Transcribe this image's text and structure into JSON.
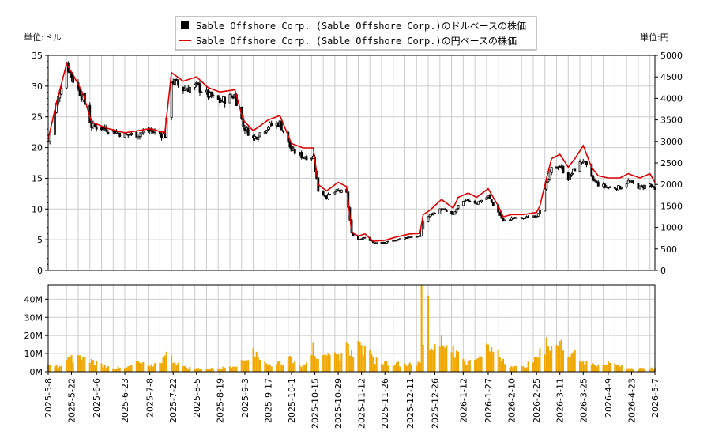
{
  "chart_data": [
    {
      "type": "candlestick-line",
      "legend": [
        {
          "label": "Sable Offshore Corp. (Sable Offshore Corp.)のドルベースの株価",
          "color": "#000000",
          "marker": "square"
        },
        {
          "label": "Sable Offshore Corp. (Sable Offshore Corp.)の円ベースの株価",
          "color": "#dd0000",
          "marker": "line"
        }
      ],
      "left_axis_label": "単位:ドル",
      "right_axis_label": "単位:円",
      "ylim_left": [
        0,
        35
      ],
      "ylim_right": [
        0,
        5000
      ],
      "yticks_left": [
        0,
        5,
        10,
        15,
        20,
        25,
        30,
        35
      ],
      "yticks_right": [
        0,
        500,
        1000,
        1500,
        2000,
        2500,
        3000,
        3500,
        4000,
        4500,
        5000
      ],
      "grid": true,
      "usd_close_key_points": [
        {
          "date": "2025-05-08",
          "close": 21
        },
        {
          "date": "2025-05-13",
          "close": 27
        },
        {
          "date": "2025-05-19",
          "close": 33.5
        },
        {
          "date": "2025-05-23",
          "close": 31
        },
        {
          "date": "2025-05-29",
          "close": 28
        },
        {
          "date": "2025-06-03",
          "close": 23.5
        },
        {
          "date": "2025-06-13",
          "close": 23
        },
        {
          "date": "2025-06-23",
          "close": 22
        },
        {
          "date": "2025-07-01",
          "close": 22.2
        },
        {
          "date": "2025-07-08",
          "close": 22.8
        },
        {
          "date": "2025-07-17",
          "close": 22
        },
        {
          "date": "2025-07-21",
          "close": 31
        },
        {
          "date": "2025-07-28",
          "close": 29.5
        },
        {
          "date": "2025-08-05",
          "close": 30
        },
        {
          "date": "2025-08-12",
          "close": 28.5
        },
        {
          "date": "2025-08-19",
          "close": 27.5
        },
        {
          "date": "2025-08-28",
          "close": 28.5
        },
        {
          "date": "2025-09-02",
          "close": 23.5
        },
        {
          "date": "2025-09-08",
          "close": 21.5
        },
        {
          "date": "2025-09-17",
          "close": 23.5
        },
        {
          "date": "2025-09-24",
          "close": 24
        },
        {
          "date": "2025-10-01",
          "close": 19.5
        },
        {
          "date": "2025-10-08",
          "close": 18.5
        },
        {
          "date": "2025-10-14",
          "close": 18.5
        },
        {
          "date": "2025-10-17",
          "close": 13
        },
        {
          "date": "2025-10-22",
          "close": 12
        },
        {
          "date": "2025-10-29",
          "close": 13
        },
        {
          "date": "2025-11-03",
          "close": 12.5
        },
        {
          "date": "2025-11-06",
          "close": 6
        },
        {
          "date": "2025-11-10",
          "close": 5
        },
        {
          "date": "2025-11-14",
          "close": 5.5
        },
        {
          "date": "2025-11-19",
          "close": 4.5
        },
        {
          "date": "2025-11-26",
          "close": 4.5
        },
        {
          "date": "2025-12-03",
          "close": 5
        },
        {
          "date": "2025-12-11",
          "close": 5.5
        },
        {
          "date": "2025-12-17",
          "close": 5.5
        },
        {
          "date": "2025-12-19",
          "close": 8
        },
        {
          "date": "2025-12-23",
          "close": 9
        },
        {
          "date": "2025-12-30",
          "close": 10
        },
        {
          "date": "2026-01-06",
          "close": 9
        },
        {
          "date": "2026-01-09",
          "close": 10.5
        },
        {
          "date": "2026-01-15",
          "close": 11.5
        },
        {
          "date": "2026-01-20",
          "close": 11
        },
        {
          "date": "2026-01-27",
          "close": 12
        },
        {
          "date": "2026-02-02",
          "close": 9.5
        },
        {
          "date": "2026-02-05",
          "close": 8
        },
        {
          "date": "2026-02-10",
          "close": 8.5
        },
        {
          "date": "2026-02-17",
          "close": 8.5
        },
        {
          "date": "2026-02-25",
          "close": 9
        },
        {
          "date": "2026-02-27",
          "close": 10
        },
        {
          "date": "2026-03-03",
          "close": 14
        },
        {
          "date": "2026-03-06",
          "close": 16.5
        },
        {
          "date": "2026-03-11",
          "close": 17
        },
        {
          "date": "2026-03-16",
          "close": 15
        },
        {
          "date": "2026-03-20",
          "close": 16.5
        },
        {
          "date": "2026-03-25",
          "close": 18
        },
        {
          "date": "2026-03-30",
          "close": 15
        },
        {
          "date": "2026-04-03",
          "close": 14
        },
        {
          "date": "2026-04-09",
          "close": 13.5
        },
        {
          "date": "2026-04-16",
          "close": 13.5
        },
        {
          "date": "2026-04-21",
          "close": 14.5
        },
        {
          "date": "2026-04-28",
          "close": 13.5
        },
        {
          "date": "2026-05-04",
          "close": 14
        },
        {
          "date": "2026-05-07",
          "close": 13
        }
      ],
      "jpy_close_key_points": [
        {
          "date": "2025-05-08",
          "close": 3050
        },
        {
          "date": "2025-05-13",
          "close": 3900
        },
        {
          "date": "2025-05-19",
          "close": 4800
        },
        {
          "date": "2025-05-23",
          "close": 4550
        },
        {
          "date": "2025-05-29",
          "close": 4100
        },
        {
          "date": "2025-06-03",
          "close": 3450
        },
        {
          "date": "2025-06-13",
          "close": 3300
        },
        {
          "date": "2025-06-23",
          "close": 3200
        },
        {
          "date": "2025-07-01",
          "close": 3250
        },
        {
          "date": "2025-07-08",
          "close": 3300
        },
        {
          "date": "2025-07-17",
          "close": 3200
        },
        {
          "date": "2025-07-21",
          "close": 4600
        },
        {
          "date": "2025-07-28",
          "close": 4400
        },
        {
          "date": "2025-08-05",
          "close": 4500
        },
        {
          "date": "2025-08-12",
          "close": 4250
        },
        {
          "date": "2025-08-19",
          "close": 4150
        },
        {
          "date": "2025-08-28",
          "close": 4200
        },
        {
          "date": "2025-09-02",
          "close": 3500
        },
        {
          "date": "2025-09-08",
          "close": 3250
        },
        {
          "date": "2025-09-17",
          "close": 3500
        },
        {
          "date": "2025-09-24",
          "close": 3600
        },
        {
          "date": "2025-10-01",
          "close": 2950
        },
        {
          "date": "2025-10-08",
          "close": 2850
        },
        {
          "date": "2025-10-14",
          "close": 2850
        },
        {
          "date": "2025-10-17",
          "close": 2000
        },
        {
          "date": "2025-10-22",
          "close": 1850
        },
        {
          "date": "2025-10-29",
          "close": 2050
        },
        {
          "date": "2025-11-03",
          "close": 1950
        },
        {
          "date": "2025-11-06",
          "close": 900
        },
        {
          "date": "2025-11-10",
          "close": 800
        },
        {
          "date": "2025-11-14",
          "close": 850
        },
        {
          "date": "2025-11-19",
          "close": 680
        },
        {
          "date": "2025-11-26",
          "close": 700
        },
        {
          "date": "2025-12-03",
          "close": 780
        },
        {
          "date": "2025-12-11",
          "close": 850
        },
        {
          "date": "2025-12-17",
          "close": 860
        },
        {
          "date": "2025-12-19",
          "close": 1300
        },
        {
          "date": "2025-12-23",
          "close": 1400
        },
        {
          "date": "2025-12-30",
          "close": 1650
        },
        {
          "date": "2026-01-06",
          "close": 1450
        },
        {
          "date": "2026-01-09",
          "close": 1700
        },
        {
          "date": "2026-01-15",
          "close": 1800
        },
        {
          "date": "2026-01-20",
          "close": 1700
        },
        {
          "date": "2026-01-27",
          "close": 1900
        },
        {
          "date": "2026-02-02",
          "close": 1500
        },
        {
          "date": "2026-02-05",
          "close": 1250
        },
        {
          "date": "2026-02-10",
          "close": 1300
        },
        {
          "date": "2026-02-17",
          "close": 1300
        },
        {
          "date": "2026-02-25",
          "close": 1350
        },
        {
          "date": "2026-02-27",
          "close": 1500
        },
        {
          "date": "2026-03-03",
          "close": 2150
        },
        {
          "date": "2026-03-06",
          "close": 2600
        },
        {
          "date": "2026-03-11",
          "close": 2700
        },
        {
          "date": "2026-03-16",
          "close": 2400
        },
        {
          "date": "2026-03-20",
          "close": 2600
        },
        {
          "date": "2026-03-25",
          "close": 2900
        },
        {
          "date": "2026-03-30",
          "close": 2400
        },
        {
          "date": "2026-04-03",
          "close": 2200
        },
        {
          "date": "2026-04-09",
          "close": 2150
        },
        {
          "date": "2026-04-16",
          "close": 2150
        },
        {
          "date": "2026-04-21",
          "close": 2250
        },
        {
          "date": "2026-04-28",
          "close": 2150
        },
        {
          "date": "2026-05-04",
          "close": 2250
        },
        {
          "date": "2026-05-07",
          "close": 2050
        }
      ]
    },
    {
      "type": "bar",
      "ylim": [
        0,
        48
      ],
      "yticks": [
        0,
        10,
        20,
        30,
        40
      ],
      "ytick_labels": [
        "0M",
        "10M",
        "20M",
        "30M",
        "40M"
      ],
      "bar_color": "#f0a800",
      "xlim": [
        "2025-05-08",
        "2026-05-07"
      ],
      "xtick_labels": [
        "2025-5-8",
        "2025-5-22",
        "2025-6-6",
        "2025-6-23",
        "2025-7-8",
        "2025-7-22",
        "2025-8-5",
        "2025-8-19",
        "2025-9-3",
        "2025-9-17",
        "2025-10-1",
        "2025-10-15",
        "2025-10-29",
        "2025-11-12",
        "2025-11-26",
        "2025-12-11",
        "2025-12-26",
        "2026-1-12",
        "2026-1-27",
        "2026-2-10",
        "2026-2-25",
        "2026-3-11",
        "2026-3-25",
        "2026-4-9",
        "2026-4-23",
        "2026-5-7"
      ],
      "volume_key_points_millions": [
        {
          "date": "2025-05-08",
          "v": 4
        },
        {
          "date": "2025-05-15",
          "v": 3
        },
        {
          "date": "2025-05-20",
          "v": 8
        },
        {
          "date": "2025-05-27",
          "v": 9
        },
        {
          "date": "2025-06-03",
          "v": 7
        },
        {
          "date": "2025-06-13",
          "v": 3
        },
        {
          "date": "2025-06-23",
          "v": 2
        },
        {
          "date": "2025-07-01",
          "v": 6
        },
        {
          "date": "2025-07-08",
          "v": 3
        },
        {
          "date": "2025-07-17",
          "v": 9
        },
        {
          "date": "2025-07-18",
          "v": 11
        },
        {
          "date": "2025-07-28",
          "v": 3
        },
        {
          "date": "2025-08-05",
          "v": 2
        },
        {
          "date": "2025-08-19",
          "v": 2
        },
        {
          "date": "2025-09-02",
          "v": 6
        },
        {
          "date": "2025-09-08",
          "v": 13
        },
        {
          "date": "2025-09-10",
          "v": 11
        },
        {
          "date": "2025-09-17",
          "v": 4
        },
        {
          "date": "2025-09-24",
          "v": 6
        },
        {
          "date": "2025-10-01",
          "v": 8
        },
        {
          "date": "2025-10-08",
          "v": 4
        },
        {
          "date": "2025-10-14",
          "v": 16
        },
        {
          "date": "2025-10-17",
          "v": 7
        },
        {
          "date": "2025-10-22",
          "v": 9
        },
        {
          "date": "2025-10-29",
          "v": 10
        },
        {
          "date": "2025-11-03",
          "v": 16
        },
        {
          "date": "2025-11-06",
          "v": 12
        },
        {
          "date": "2025-11-10",
          "v": 17
        },
        {
          "date": "2025-11-14",
          "v": 14
        },
        {
          "date": "2025-11-19",
          "v": 8
        },
        {
          "date": "2025-11-26",
          "v": 6
        },
        {
          "date": "2025-12-03",
          "v": 5
        },
        {
          "date": "2025-12-11",
          "v": 5
        },
        {
          "date": "2025-12-17",
          "v": 5
        },
        {
          "date": "2025-12-18",
          "v": 48
        },
        {
          "date": "2025-12-19",
          "v": 15
        },
        {
          "date": "2025-12-22",
          "v": 42
        },
        {
          "date": "2025-12-23",
          "v": 12
        },
        {
          "date": "2025-12-30",
          "v": 20
        },
        {
          "date": "2026-01-06",
          "v": 14
        },
        {
          "date": "2026-01-15",
          "v": 6
        },
        {
          "date": "2026-01-20",
          "v": 7
        },
        {
          "date": "2026-01-27",
          "v": 15
        },
        {
          "date": "2026-02-02",
          "v": 12
        },
        {
          "date": "2026-02-10",
          "v": 3
        },
        {
          "date": "2026-02-17",
          "v": 3
        },
        {
          "date": "2026-02-25",
          "v": 8
        },
        {
          "date": "2026-03-03",
          "v": 19
        },
        {
          "date": "2026-03-06",
          "v": 14
        },
        {
          "date": "2026-03-11",
          "v": 17
        },
        {
          "date": "2026-03-20",
          "v": 12
        },
        {
          "date": "2026-03-25",
          "v": 6
        },
        {
          "date": "2026-04-03",
          "v": 4
        },
        {
          "date": "2026-04-09",
          "v": 6
        },
        {
          "date": "2026-04-23",
          "v": 2
        },
        {
          "date": "2026-05-07",
          "v": 2
        }
      ]
    }
  ]
}
